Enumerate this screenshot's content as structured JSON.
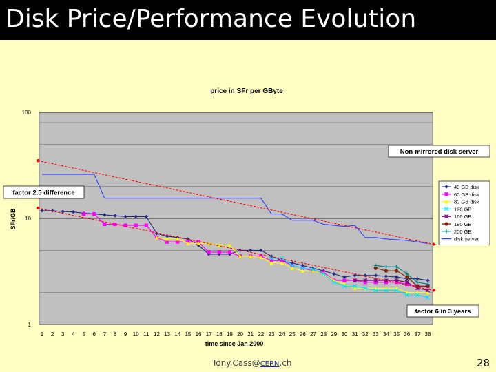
{
  "slide": {
    "title": "Disk Price/Performance Evolution",
    "footer_prefix": "Tony.Cass@",
    "footer_link": "CERN",
    "footer_suffix": ".ch",
    "page_number": "28"
  },
  "colors": {
    "background": "#ffffc4",
    "title_bar": "#000000",
    "plot_area": "#c0c0c0",
    "trend_line": "#ff0000"
  },
  "chart_data": {
    "type": "line",
    "title": "price in SFr per GByte",
    "xlabel": "time since Jan 2000",
    "ylabel": "SFr/GB",
    "yscale": "log",
    "ylim": [
      1,
      100
    ],
    "yticks": [
      "1",
      "10",
      "100"
    ],
    "categories": [
      "1",
      "2",
      "3",
      "4",
      "5",
      "6",
      "7",
      "8",
      "9",
      "10",
      "11",
      "12",
      "13",
      "14",
      "15",
      "16",
      "17",
      "18",
      "19",
      "20",
      "21",
      "22",
      "23",
      "24",
      "25",
      "26",
      "27",
      "28",
      "29",
      "30",
      "31",
      "32",
      "33",
      "34",
      "35",
      "36",
      "37",
      "38"
    ],
    "legend_position": "right",
    "series": [
      {
        "name": "40 GB disk",
        "color": "#1f2a80",
        "marker": "diamond",
        "values": [
          11.8,
          11.8,
          11.6,
          11.5,
          11.2,
          11.0,
          10.8,
          10.6,
          10.4,
          10.4,
          10.4,
          7.2,
          6.8,
          6.6,
          6.4,
          5.6,
          4.6,
          4.6,
          4.6,
          5.0,
          5.0,
          5.0,
          4.4,
          4.0,
          3.8,
          3.6,
          3.4,
          3.2,
          3.0,
          2.8,
          2.9,
          2.9,
          2.9,
          2.85,
          2.8,
          2.7,
          2.7,
          2.6
        ]
      },
      {
        "name": "60 GB disk",
        "color": "#ff00ff",
        "marker": "square",
        "values": [
          null,
          null,
          null,
          null,
          11.0,
          11.0,
          8.8,
          8.8,
          8.6,
          8.6,
          8.6,
          6.6,
          6.0,
          6.0,
          6.0,
          6.0,
          4.8,
          4.8,
          4.8,
          4.4,
          4.4,
          4.4,
          4.0,
          4.0,
          3.6,
          3.4,
          3.2,
          3.1,
          2.6,
          2.6,
          2.6,
          2.5,
          2.5,
          2.5,
          2.5,
          2.4,
          2.3,
          2.3
        ]
      },
      {
        "name": "80 GB disk",
        "color": "#ffff00",
        "marker": "triangle",
        "values": [
          null,
          null,
          null,
          null,
          null,
          null,
          null,
          null,
          null,
          null,
          null,
          6.6,
          6.4,
          6.4,
          5.8,
          5.8,
          5.8,
          5.6,
          5.6,
          4.4,
          4.4,
          4.3,
          3.8,
          3.8,
          3.4,
          3.2,
          3.2,
          3.0,
          2.6,
          2.4,
          2.2,
          2.2,
          2.2,
          2.2,
          2.2,
          2.0,
          2.0,
          2.0
        ]
      },
      {
        "name": "120 GB",
        "color": "#00e5ff",
        "marker": "x",
        "values": [
          null,
          null,
          null,
          null,
          null,
          null,
          null,
          null,
          null,
          null,
          null,
          null,
          null,
          null,
          null,
          null,
          null,
          null,
          null,
          null,
          null,
          null,
          4.2,
          4.2,
          3.6,
          3.4,
          3.3,
          3.0,
          2.5,
          2.3,
          2.3,
          2.2,
          2.1,
          2.1,
          2.1,
          1.9,
          1.9,
          1.8
        ]
      },
      {
        "name": "160 GB",
        "color": "#7f007f",
        "marker": "star",
        "values": [
          null,
          null,
          null,
          null,
          null,
          null,
          null,
          null,
          null,
          null,
          null,
          null,
          null,
          null,
          null,
          null,
          null,
          null,
          null,
          null,
          null,
          null,
          null,
          null,
          null,
          null,
          null,
          null,
          null,
          null,
          2.6,
          2.6,
          2.6,
          2.6,
          2.6,
          2.5,
          2.2,
          2.1
        ]
      },
      {
        "name": "180 GB",
        "color": "#7f1f00",
        "marker": "circle",
        "values": [
          null,
          null,
          null,
          null,
          null,
          null,
          null,
          null,
          null,
          null,
          null,
          null,
          null,
          null,
          null,
          null,
          null,
          null,
          null,
          null,
          null,
          null,
          null,
          null,
          null,
          null,
          null,
          null,
          null,
          null,
          null,
          null,
          3.4,
          3.2,
          3.2,
          2.8,
          2.3,
          2.3
        ]
      },
      {
        "name": "200 GB",
        "color": "#008080",
        "marker": "plus",
        "values": [
          null,
          null,
          null,
          null,
          null,
          null,
          null,
          null,
          null,
          null,
          null,
          null,
          null,
          null,
          null,
          null,
          null,
          null,
          null,
          null,
          null,
          null,
          null,
          null,
          null,
          null,
          null,
          null,
          null,
          null,
          null,
          null,
          3.6,
          3.5,
          3.5,
          3.0,
          2.5,
          2.4
        ]
      },
      {
        "name": "disk server",
        "color": "#3040ff",
        "marker": "none",
        "values": [
          26,
          26,
          26,
          26,
          26,
          26,
          15.5,
          15.5,
          15.5,
          15.5,
          15.5,
          15.5,
          15.5,
          15.5,
          15.5,
          15.5,
          15.5,
          15.5,
          15.5,
          15.5,
          15.5,
          15.5,
          11,
          11,
          9.6,
          9.6,
          9.6,
          8.8,
          8.6,
          8.4,
          8.6,
          6.6,
          6.6,
          6.4,
          6.3,
          6.2,
          6.0,
          5.8
        ]
      }
    ],
    "trend_lines": [
      {
        "name": "server trend",
        "from": [
          1,
          35
        ],
        "to": [
          38,
          5.7
        ]
      },
      {
        "name": "disk trend",
        "from": [
          1,
          12.5
        ],
        "to": [
          38,
          2.1
        ]
      }
    ],
    "annotations": {
      "top_right": "Non-mirrored disk server",
      "left": "factor 2.5 difference",
      "bottom_right": "factor 6 in 3 years"
    }
  }
}
